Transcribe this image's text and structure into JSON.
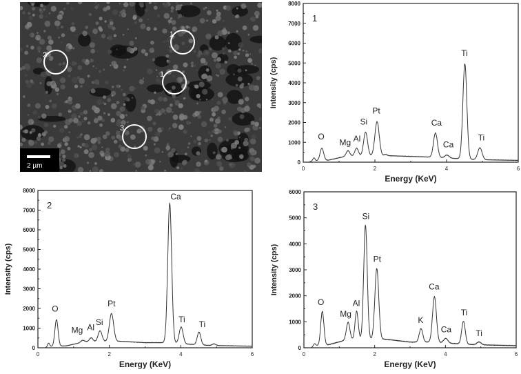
{
  "sem_image": {
    "scale_bar_label": "2 µm",
    "markers": [
      {
        "label": "1"
      },
      {
        "label": "1"
      },
      {
        "label": "2"
      },
      {
        "label": "3"
      }
    ]
  },
  "chart_data": [
    {
      "type": "line",
      "panel_label": "1",
      "xlabel": "Energy (KeV)",
      "ylabel": "Intensity (cps)",
      "xlim": [
        0,
        6
      ],
      "ylim": [
        0,
        8000
      ],
      "xticks": [
        0,
        2,
        4,
        6
      ],
      "yticks": [
        0,
        1000,
        2000,
        3000,
        4000,
        5000,
        6000,
        7000,
        8000
      ],
      "background": [
        [
          0.15,
          0
        ],
        [
          0.25,
          60
        ],
        [
          0.7,
          100
        ],
        [
          1.2,
          300
        ],
        [
          2.3,
          330
        ],
        [
          3,
          290
        ],
        [
          3.5,
          260
        ],
        [
          4.8,
          130
        ],
        [
          6,
          90
        ]
      ],
      "peaks": [
        [
          0.3,
          150,
          0.03
        ],
        [
          0.52,
          620,
          0.05
        ],
        [
          1.25,
          280,
          0.05
        ],
        [
          1.49,
          400,
          0.05
        ],
        [
          1.74,
          1200,
          0.055
        ],
        [
          2.06,
          1720,
          0.06
        ],
        [
          2.3,
          60,
          0.04
        ],
        [
          3.69,
          1230,
          0.055
        ],
        [
          4.01,
          150,
          0.06
        ],
        [
          4.51,
          4800,
          0.055
        ],
        [
          4.93,
          600,
          0.06
        ]
      ],
      "annotations": [
        {
          "text": "O",
          "x": 0.5,
          "y": 1150
        },
        {
          "text": "Mg",
          "x": 1.17,
          "y": 850
        },
        {
          "text": "Al",
          "x": 1.5,
          "y": 1050
        },
        {
          "text": "Si",
          "x": 1.69,
          "y": 1900
        },
        {
          "text": "Pt",
          "x": 2.04,
          "y": 2450
        },
        {
          "text": "Ca",
          "x": 3.72,
          "y": 1850
        },
        {
          "text": "Ca",
          "x": 4.05,
          "y": 750
        },
        {
          "text": "Ti",
          "x": 4.5,
          "y": 5350
        },
        {
          "text": "Ti",
          "x": 4.97,
          "y": 1100
        }
      ]
    },
    {
      "type": "line",
      "panel_label": "2",
      "xlabel": "Energy (KeV)",
      "ylabel": "Intensity (cps)",
      "xlim": [
        0,
        6
      ],
      "ylim": [
        0,
        8000
      ],
      "xticks": [
        0,
        2,
        4,
        6
      ],
      "yticks": [
        0,
        1000,
        2000,
        3000,
        4000,
        5000,
        6000,
        7000,
        8000
      ],
      "background": [
        [
          0.2,
          0
        ],
        [
          0.3,
          60
        ],
        [
          0.8,
          100
        ],
        [
          1.3,
          300
        ],
        [
          2.3,
          330
        ],
        [
          3,
          260
        ],
        [
          3.5,
          260
        ],
        [
          4.8,
          120
        ],
        [
          6,
          80
        ]
      ],
      "peaks": [
        [
          0.3,
          180,
          0.03
        ],
        [
          0.52,
          1350,
          0.045
        ],
        [
          1.25,
          100,
          0.05
        ],
        [
          1.49,
          200,
          0.05
        ],
        [
          1.74,
          550,
          0.055
        ],
        [
          2.06,
          1420,
          0.06
        ],
        [
          3.69,
          7100,
          0.055
        ],
        [
          4.01,
          850,
          0.055
        ],
        [
          4.51,
          650,
          0.05
        ],
        [
          4.93,
          80,
          0.05
        ]
      ],
      "annotations": [
        {
          "text": "O",
          "x": 0.48,
          "y": 1850
        },
        {
          "text": "Mg",
          "x": 1.1,
          "y": 750
        },
        {
          "text": "Al",
          "x": 1.48,
          "y": 900
        },
        {
          "text": "Si",
          "x": 1.72,
          "y": 1150
        },
        {
          "text": "Pt",
          "x": 2.06,
          "y": 2100
        },
        {
          "text": "Ca",
          "x": 3.86,
          "y": 7550
        },
        {
          "text": "Ti",
          "x": 4.03,
          "y": 1300
        },
        {
          "text": "Ti",
          "x": 4.6,
          "y": 1050
        }
      ]
    },
    {
      "type": "line",
      "panel_label": "3",
      "xlabel": "Energy (KeV)",
      "ylabel": "Intensity (cps)",
      "xlim": [
        0,
        6
      ],
      "ylim": [
        0,
        6000
      ],
      "xticks": [
        0,
        2,
        4,
        6
      ],
      "yticks": [
        0,
        1000,
        2000,
        3000,
        4000,
        5000,
        6000
      ],
      "background": [
        [
          0.2,
          0
        ],
        [
          0.3,
          80
        ],
        [
          0.7,
          120
        ],
        [
          1.2,
          300
        ],
        [
          2.3,
          330
        ],
        [
          3,
          220
        ],
        [
          3.5,
          220
        ],
        [
          4.8,
          120
        ],
        [
          6,
          80
        ]
      ],
      "peaks": [
        [
          0.3,
          80,
          0.03
        ],
        [
          0.52,
          1300,
          0.045
        ],
        [
          1.25,
          680,
          0.05
        ],
        [
          1.49,
          1100,
          0.045
        ],
        [
          1.74,
          4400,
          0.05
        ],
        [
          2.06,
          2720,
          0.055
        ],
        [
          3.31,
          520,
          0.05
        ],
        [
          3.69,
          1760,
          0.055
        ],
        [
          4.01,
          180,
          0.06
        ],
        [
          4.51,
          880,
          0.05
        ],
        [
          4.95,
          110,
          0.06
        ]
      ],
      "annotations": [
        {
          "text": "O",
          "x": 0.48,
          "y": 1650
        },
        {
          "text": "Mg",
          "x": 1.18,
          "y": 1200
        },
        {
          "text": "Al",
          "x": 1.48,
          "y": 1600
        },
        {
          "text": "Si",
          "x": 1.75,
          "y": 4950
        },
        {
          "text": "Pt",
          "x": 2.07,
          "y": 3300
        },
        {
          "text": "K",
          "x": 3.3,
          "y": 950
        },
        {
          "text": "Ca",
          "x": 3.68,
          "y": 2250
        },
        {
          "text": "Ca",
          "x": 4.02,
          "y": 600
        },
        {
          "text": "Ti",
          "x": 4.53,
          "y": 1250
        },
        {
          "text": "Ti",
          "x": 4.95,
          "y": 450
        }
      ]
    }
  ]
}
